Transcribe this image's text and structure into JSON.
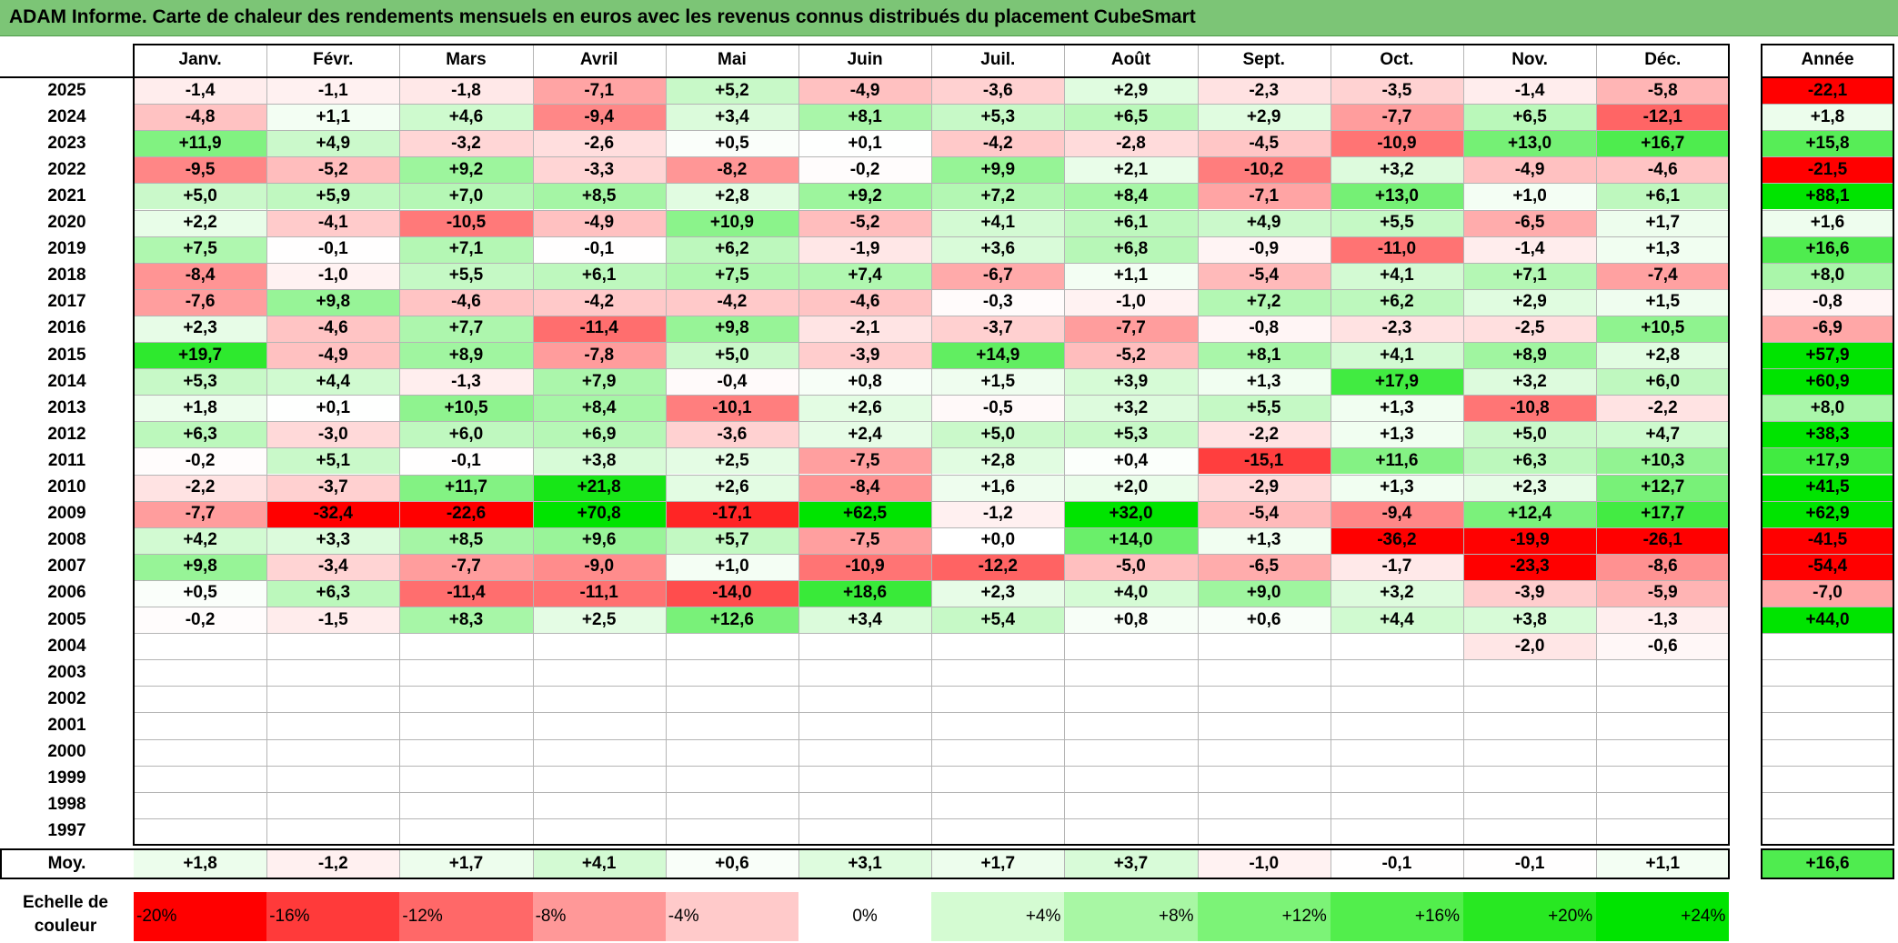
{
  "title": "ADAM Informe. Carte de chaleur des rendements mensuels en euros avec les revenus connus distribués du placement CubeSmart",
  "chart_data": {
    "type": "heatmap",
    "months": [
      "Janv.",
      "Févr.",
      "Mars",
      "Avril",
      "Mai",
      "Juin",
      "Juil.",
      "Août",
      "Sept.",
      "Oct.",
      "Nov.",
      "Déc."
    ],
    "year_header": "Année",
    "rows": [
      {
        "year": "2025",
        "values": [
          "-1,4",
          "-1,1",
          "-1,8",
          "-7,1",
          "+5,2",
          "-4,9",
          "-3,6",
          "+2,9",
          "-2,3",
          "-3,5",
          "-1,4",
          "-5,8"
        ],
        "annual": "-22,1"
      },
      {
        "year": "2024",
        "values": [
          "-4,8",
          "+1,1",
          "+4,6",
          "-9,4",
          "+3,4",
          "+8,1",
          "+5,3",
          "+6,5",
          "+2,9",
          "-7,7",
          "+6,5",
          "-12,1"
        ],
        "annual": "+1,8"
      },
      {
        "year": "2023",
        "values": [
          "+11,9",
          "+4,9",
          "-3,2",
          "-2,6",
          "+0,5",
          "+0,1",
          "-4,2",
          "-2,8",
          "-4,5",
          "-10,9",
          "+13,0",
          "+16,7"
        ],
        "annual": "+15,8"
      },
      {
        "year": "2022",
        "values": [
          "-9,5",
          "-5,2",
          "+9,2",
          "-3,3",
          "-8,2",
          "-0,2",
          "+9,9",
          "+2,1",
          "-10,2",
          "+3,2",
          "-4,9",
          "-4,6"
        ],
        "annual": "-21,5"
      },
      {
        "year": "2021",
        "values": [
          "+5,0",
          "+5,9",
          "+7,0",
          "+8,5",
          "+2,8",
          "+9,2",
          "+7,2",
          "+8,4",
          "-7,1",
          "+13,0",
          "+1,0",
          "+6,1"
        ],
        "annual": "+88,1"
      },
      {
        "year": "2020",
        "values": [
          "+2,2",
          "-4,1",
          "-10,5",
          "-4,9",
          "+10,9",
          "-5,2",
          "+4,1",
          "+6,1",
          "+4,9",
          "+5,5",
          "-6,5",
          "+1,7"
        ],
        "annual": "+1,6"
      },
      {
        "year": "2019",
        "values": [
          "+7,5",
          "-0,1",
          "+7,1",
          "-0,1",
          "+6,2",
          "-1,9",
          "+3,6",
          "+6,8",
          "-0,9",
          "-11,0",
          "-1,4",
          "+1,3"
        ],
        "annual": "+16,6"
      },
      {
        "year": "2018",
        "values": [
          "-8,4",
          "-1,0",
          "+5,5",
          "+6,1",
          "+7,5",
          "+7,4",
          "-6,7",
          "+1,1",
          "-5,4",
          "+4,1",
          "+7,1",
          "-7,4"
        ],
        "annual": "+8,0"
      },
      {
        "year": "2017",
        "values": [
          "-7,6",
          "+9,8",
          "-4,6",
          "-4,2",
          "-4,2",
          "-4,6",
          "-0,3",
          "-1,0",
          "+7,2",
          "+6,2",
          "+2,9",
          "+1,5"
        ],
        "annual": "-0,8"
      },
      {
        "year": "2016",
        "values": [
          "+2,3",
          "-4,6",
          "+7,7",
          "-11,4",
          "+9,8",
          "-2,1",
          "-3,7",
          "-7,7",
          "-0,8",
          "-2,3",
          "-2,5",
          "+10,5"
        ],
        "annual": "-6,9"
      },
      {
        "year": "2015",
        "values": [
          "+19,7",
          "-4,9",
          "+8,9",
          "-7,8",
          "+5,0",
          "-3,9",
          "+14,9",
          "-5,2",
          "+8,1",
          "+4,1",
          "+8,9",
          "+2,8"
        ],
        "annual": "+57,9"
      },
      {
        "year": "2014",
        "values": [
          "+5,3",
          "+4,4",
          "-1,3",
          "+7,9",
          "-0,4",
          "+0,8",
          "+1,5",
          "+3,9",
          "+1,3",
          "+17,9",
          "+3,2",
          "+6,0"
        ],
        "annual": "+60,9"
      },
      {
        "year": "2013",
        "values": [
          "+1,8",
          "+0,1",
          "+10,5",
          "+8,4",
          "-10,1",
          "+2,6",
          "-0,5",
          "+3,2",
          "+5,5",
          "+1,3",
          "-10,8",
          "-2,2"
        ],
        "annual": "+8,0"
      },
      {
        "year": "2012",
        "values": [
          "+6,3",
          "-3,0",
          "+6,0",
          "+6,9",
          "-3,6",
          "+2,4",
          "+5,0",
          "+5,3",
          "-2,2",
          "+1,3",
          "+5,0",
          "+4,7"
        ],
        "annual": "+38,3"
      },
      {
        "year": "2011",
        "values": [
          "-0,2",
          "+5,1",
          "-0,1",
          "+3,8",
          "+2,5",
          "-7,5",
          "+2,8",
          "+0,4",
          "-15,1",
          "+11,6",
          "+6,3",
          "+10,3"
        ],
        "annual": "+17,9"
      },
      {
        "year": "2010",
        "values": [
          "-2,2",
          "-3,7",
          "+11,7",
          "+21,8",
          "+2,6",
          "-8,4",
          "+1,6",
          "+2,0",
          "-2,9",
          "+1,3",
          "+2,3",
          "+12,7"
        ],
        "annual": "+41,5"
      },
      {
        "year": "2009",
        "values": [
          "-7,7",
          "-32,4",
          "-22,6",
          "+70,8",
          "-17,1",
          "+62,5",
          "-1,2",
          "+32,0",
          "-5,4",
          "-9,4",
          "+12,4",
          "+17,7"
        ],
        "annual": "+62,9"
      },
      {
        "year": "2008",
        "values": [
          "+4,2",
          "+3,3",
          "+8,5",
          "+9,6",
          "+5,7",
          "-7,5",
          "+0,0",
          "+14,0",
          "+1,3",
          "-36,2",
          "-19,9",
          "-26,1"
        ],
        "annual": "-41,5"
      },
      {
        "year": "2007",
        "values": [
          "+9,8",
          "-3,4",
          "-7,7",
          "-9,0",
          "+1,0",
          "-10,9",
          "-12,2",
          "-5,0",
          "-6,5",
          "-1,7",
          "-23,3",
          "-8,6"
        ],
        "annual": "-54,4"
      },
      {
        "year": "2006",
        "values": [
          "+0,5",
          "+6,3",
          "-11,4",
          "-11,1",
          "-14,0",
          "+18,6",
          "+2,3",
          "+4,0",
          "+9,0",
          "+3,2",
          "-3,9",
          "-5,9"
        ],
        "annual": "-7,0"
      },
      {
        "year": "2005",
        "values": [
          "-0,2",
          "-1,5",
          "+8,3",
          "+2,5",
          "+12,6",
          "+3,4",
          "+5,4",
          "+0,8",
          "+0,6",
          "+4,4",
          "+3,8",
          "-1,3"
        ],
        "annual": "+44,0"
      },
      {
        "year": "2004",
        "values": [
          "",
          "",
          "",
          "",
          "",
          "",
          "",
          "",
          "",
          "",
          "-2,0",
          "-0,6"
        ],
        "annual": ""
      },
      {
        "year": "2003",
        "values": [
          "",
          "",
          "",
          "",
          "",
          "",
          "",
          "",
          "",
          "",
          "",
          ""
        ],
        "annual": ""
      },
      {
        "year": "2002",
        "values": [
          "",
          "",
          "",
          "",
          "",
          "",
          "",
          "",
          "",
          "",
          "",
          ""
        ],
        "annual": ""
      },
      {
        "year": "2001",
        "values": [
          "",
          "",
          "",
          "",
          "",
          "",
          "",
          "",
          "",
          "",
          "",
          ""
        ],
        "annual": ""
      },
      {
        "year": "2000",
        "values": [
          "",
          "",
          "",
          "",
          "",
          "",
          "",
          "",
          "",
          "",
          "",
          ""
        ],
        "annual": ""
      },
      {
        "year": "1999",
        "values": [
          "",
          "",
          "",
          "",
          "",
          "",
          "",
          "",
          "",
          "",
          "",
          ""
        ],
        "annual": ""
      },
      {
        "year": "1998",
        "values": [
          "",
          "",
          "",
          "",
          "",
          "",
          "",
          "",
          "",
          "",
          "",
          ""
        ],
        "annual": ""
      },
      {
        "year": "1997",
        "values": [
          "",
          "",
          "",
          "",
          "",
          "",
          "",
          "",
          "",
          "",
          "",
          ""
        ],
        "annual": ""
      }
    ],
    "average": {
      "label": "Moy.",
      "values": [
        "+1,8",
        "-1,2",
        "+1,7",
        "+4,1",
        "+0,6",
        "+3,1",
        "+1,7",
        "+3,7",
        "-1,0",
        "-0,1",
        "-0,1",
        "+1,1"
      ],
      "annual": "+16,6"
    },
    "color_scale": {
      "label": "Echelle de couleur",
      "steps": [
        {
          "label": "-20%",
          "color": "#ff0000"
        },
        {
          "label": "-16%",
          "color": "#ff3a3a"
        },
        {
          "label": "-12%",
          "color": "#ff6868"
        },
        {
          "label": "-8%",
          "color": "#ff9898"
        },
        {
          "label": "-4%",
          "color": "#ffcaca"
        },
        {
          "label": "0%",
          "color": "#ffffff"
        },
        {
          "label": "+4%",
          "color": "#d4fbd2"
        },
        {
          "label": "+8%",
          "color": "#a8f7a4"
        },
        {
          "label": "+12%",
          "color": "#7cf377"
        },
        {
          "label": "+16%",
          "color": "#52ee4c"
        },
        {
          "label": "+20%",
          "color": "#28e822"
        },
        {
          "label": "+24%",
          "color": "#00e400"
        }
      ]
    }
  }
}
